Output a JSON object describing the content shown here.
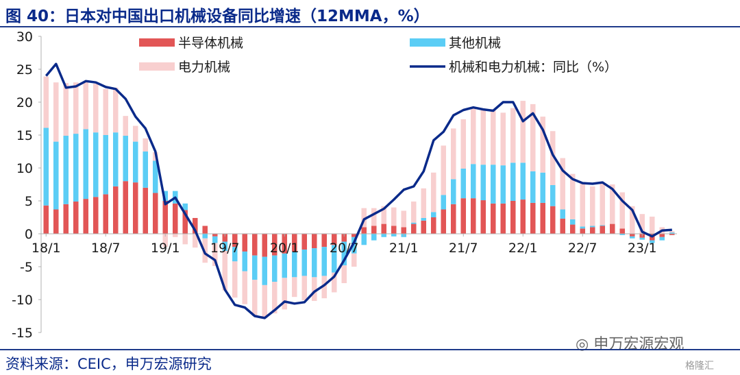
{
  "header": {
    "title": "图 40：日本对中国出口机械设备同比增速（12MMA，%）"
  },
  "footer": {
    "source": "资料来源：CEIC，申万宏源研究",
    "watermark": "申万宏源宏观",
    "watermark2": "格隆汇"
  },
  "chart_data": {
    "type": "bar",
    "stacked": true,
    "ylim": [
      -15,
      30
    ],
    "yticks": [
      30,
      25,
      20,
      15,
      10,
      5,
      0,
      -5,
      -10,
      -15
    ],
    "grid": false,
    "legend_position": "top",
    "x_labels": [
      {
        "label": "18/1",
        "index": 0
      },
      {
        "label": "18/7",
        "index": 6
      },
      {
        "label": "19/1",
        "index": 12
      },
      {
        "label": "19/7",
        "index": 18
      },
      {
        "label": "20/1",
        "index": 24
      },
      {
        "label": "20/7",
        "index": 30
      },
      {
        "label": "21/1",
        "index": 36
      },
      {
        "label": "21/7",
        "index": 42
      },
      {
        "label": "22/1",
        "index": 48
      },
      {
        "label": "22/7",
        "index": 54
      },
      {
        "label": "23/1",
        "index": 60
      }
    ],
    "categories_count": 64,
    "colors": {
      "semi": "#e25656",
      "other": "#5bcdf5",
      "power": "#f8cfcf",
      "line": "#0a2a8a"
    },
    "series": [
      {
        "name": "半导体机械",
        "kind": "bar",
        "values": [
          4.3,
          3.7,
          4.5,
          4.9,
          5.3,
          5.6,
          6.0,
          7.2,
          8.0,
          7.8,
          7.0,
          6.2,
          5.0,
          4.6,
          3.6,
          2.4,
          1.2,
          -0.4,
          -1.2,
          -2.0,
          -2.7,
          -3.3,
          -3.5,
          -3.3,
          -3.0,
          -2.7,
          -2.4,
          -2.2,
          -2.0,
          -1.7,
          -1.2,
          -0.5,
          1.0,
          1.2,
          1.5,
          1.2,
          1.0,
          1.5,
          2.0,
          2.5,
          3.7,
          4.5,
          5.4,
          5.4,
          5.1,
          4.6,
          4.6,
          5.0,
          5.2,
          4.7,
          4.7,
          4.2,
          2.3,
          1.4,
          0.8,
          1.0,
          1.2,
          1.5,
          0.8,
          -0.4,
          -0.6,
          -1.0,
          -0.5,
          -0.2
        ]
      },
      {
        "name": "其他机械",
        "kind": "bar",
        "values": [
          11.8,
          10.3,
          10.4,
          10.3,
          10.6,
          9.8,
          9.0,
          8.2,
          6.9,
          6.2,
          5.5,
          4.9,
          1.5,
          1.9,
          1.0,
          0.0,
          -0.7,
          -1.0,
          -1.4,
          -2.2,
          -3.0,
          -3.7,
          -4.3,
          -4.0,
          -3.7,
          -3.9,
          -4.0,
          -4.4,
          -4.4,
          -4.2,
          -3.6,
          -2.5,
          -1.7,
          -1.0,
          -0.5,
          -0.4,
          -0.5,
          0.2,
          0.4,
          0.8,
          2.2,
          3.8,
          4.5,
          5.2,
          5.4,
          5.9,
          5.8,
          5.8,
          5.6,
          4.8,
          4.6,
          3.2,
          1.4,
          0.8,
          0.3,
          0.2,
          0.1,
          0.0,
          -0.2,
          -0.3,
          -0.3,
          -0.4,
          -0.5,
          0.2
        ]
      },
      {
        "name": "电力机械",
        "kind": "bar",
        "values": [
          7.8,
          9.0,
          8.0,
          7.8,
          7.2,
          7.4,
          7.0,
          6.8,
          3.0,
          2.4,
          2.0,
          1.3,
          -2.0,
          -0.5,
          -1.6,
          -2.1,
          -3.7,
          -3.5,
          -6.0,
          -5.5,
          -5.0,
          -5.5,
          -5.0,
          -4.8,
          -4.8,
          -3.0,
          -3.7,
          -3.6,
          -3.4,
          -3.0,
          -2.7,
          -2.0,
          2.9,
          2.7,
          2.7,
          2.8,
          2.5,
          3.2,
          4.5,
          6.0,
          7.5,
          7.7,
          7.5,
          8.6,
          8.4,
          8.2,
          8.0,
          8.3,
          9.4,
          10.2,
          8.5,
          8.2,
          7.8,
          6.9,
          6.5,
          6.0,
          6.3,
          6.0,
          5.5,
          4.2,
          3.0,
          2.6,
          1.0,
          0.2
        ]
      },
      {
        "name": "机械和电力机械：同比（%）",
        "kind": "line",
        "values": [
          24.0,
          25.8,
          22.2,
          22.4,
          23.2,
          23.0,
          22.3,
          22.0,
          20.5,
          17.8,
          16.0,
          12.5,
          4.5,
          5.5,
          3.0,
          0.5,
          -3.0,
          -4.0,
          -8.5,
          -10.8,
          -11.2,
          -12.5,
          -12.8,
          -11.6,
          -10.3,
          -10.6,
          -10.4,
          -8.8,
          -7.8,
          -6.5,
          -4.0,
          -1.3,
          2.2,
          3.0,
          3.8,
          5.2,
          6.7,
          7.2,
          9.5,
          14.2,
          15.5,
          18.0,
          18.8,
          19.2,
          18.9,
          18.7,
          20.0,
          20.0,
          17.1,
          18.3,
          15.8,
          12.0,
          9.6,
          8.3,
          7.7,
          7.6,
          7.8,
          6.8,
          5.0,
          3.6,
          0.3,
          -0.4,
          0.5,
          0.6
        ]
      }
    ]
  }
}
